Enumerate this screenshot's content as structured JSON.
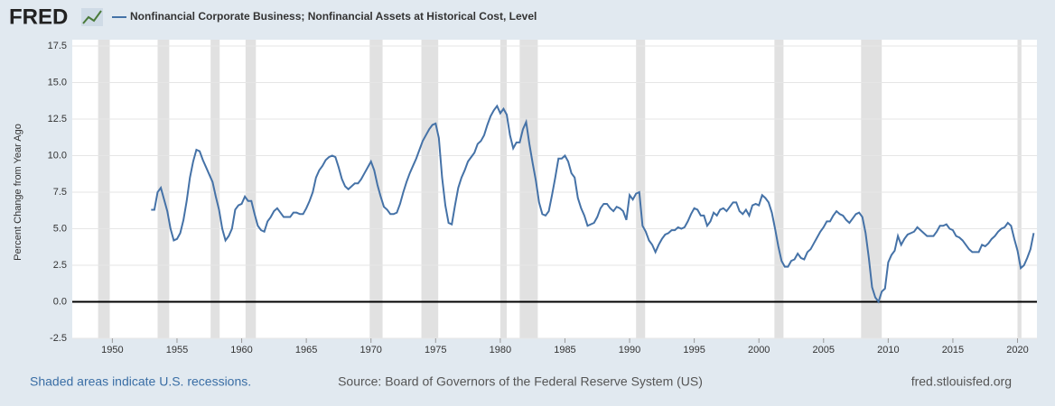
{
  "chart_data": {
    "type": "line",
    "logo": "FRED",
    "title": "Nonfinancial Corporate Business; Nonfinancial Assets at Historical Cost, Level",
    "y_label": "Percent Change from Year Ago",
    "footer_left": "Shaded areas indicate U.S. recessions.",
    "footer_center": "Source: Board of Governors of the Federal Reserve System (US)",
    "footer_right": "fred.stlouisfed.org",
    "xlim": [
      1946.9,
      2021.5
    ],
    "xticks": [
      1950,
      1955,
      1960,
      1965,
      1970,
      1975,
      1980,
      1985,
      1990,
      1995,
      2000,
      2005,
      2010,
      2015,
      2020
    ],
    "ylim": [
      -2.5,
      17.5
    ],
    "yticks": [
      -2.5,
      {
        "value": 0,
        "label": "0.0"
      },
      2.5,
      {
        "value": 5,
        "label": "5.0"
      },
      7.5,
      {
        "value": 10,
        "label": "10.0"
      },
      12.5,
      {
        "value": 15,
        "label": "15.0"
      },
      17.5
    ],
    "grid": true,
    "recessions": [
      [
        1948.9,
        1949.8
      ],
      [
        1953.5,
        1954.4
      ],
      [
        1957.6,
        1958.3
      ],
      [
        1960.3,
        1961.1
      ],
      [
        1969.9,
        1970.9
      ],
      [
        1973.9,
        1975.2
      ],
      [
        1980.0,
        1980.5
      ],
      [
        1981.5,
        1982.9
      ],
      [
        1990.5,
        1991.2
      ],
      [
        2001.2,
        2001.9
      ],
      [
        2007.9,
        2009.5
      ],
      [
        2020.0,
        2020.3
      ]
    ],
    "x": [
      1953,
      1953.25,
      1953.5,
      1953.75,
      1954,
      1954.25,
      1954.5,
      1954.75,
      1955,
      1955.25,
      1955.5,
      1955.75,
      1956,
      1956.25,
      1956.5,
      1956.75,
      1957,
      1957.25,
      1957.5,
      1957.75,
      1958,
      1958.25,
      1958.5,
      1958.75,
      1959,
      1959.25,
      1959.5,
      1959.75,
      1960,
      1960.25,
      1960.5,
      1960.75,
      1961,
      1961.25,
      1961.5,
      1961.75,
      1962,
      1962.25,
      1962.5,
      1962.75,
      1963,
      1963.25,
      1963.5,
      1963.75,
      1964,
      1964.25,
      1964.5,
      1964.75,
      1965,
      1965.25,
      1965.5,
      1965.75,
      1966,
      1966.25,
      1966.5,
      1966.75,
      1967,
      1967.25,
      1967.5,
      1967.75,
      1968,
      1968.25,
      1968.5,
      1968.75,
      1969,
      1969.25,
      1969.5,
      1969.75,
      1970,
      1970.25,
      1970.5,
      1970.75,
      1971,
      1971.25,
      1971.5,
      1971.75,
      1972,
      1972.25,
      1972.5,
      1972.75,
      1973,
      1973.25,
      1973.5,
      1973.75,
      1974,
      1974.25,
      1974.5,
      1974.75,
      1975,
      1975.25,
      1975.5,
      1975.75,
      1976,
      1976.25,
      1976.5,
      1976.75,
      1977,
      1977.25,
      1977.5,
      1977.75,
      1978,
      1978.25,
      1978.5,
      1978.75,
      1979,
      1979.25,
      1979.5,
      1979.75,
      1980,
      1980.25,
      1980.5,
      1980.75,
      1981,
      1981.25,
      1981.5,
      1981.75,
      1982,
      1982.25,
      1982.5,
      1982.75,
      1983,
      1983.25,
      1983.5,
      1983.75,
      1984,
      1984.25,
      1984.5,
      1984.75,
      1985,
      1985.25,
      1985.5,
      1985.75,
      1986,
      1986.25,
      1986.5,
      1986.75,
      1987,
      1987.25,
      1987.5,
      1987.75,
      1988,
      1988.25,
      1988.5,
      1988.75,
      1989,
      1989.25,
      1989.5,
      1989.75,
      1990,
      1990.25,
      1990.5,
      1990.75,
      1991,
      1991.25,
      1991.5,
      1991.75,
      1992,
      1992.25,
      1992.5,
      1992.75,
      1993,
      1993.25,
      1993.5,
      1993.75,
      1994,
      1994.25,
      1994.5,
      1994.75,
      1995,
      1995.25,
      1995.5,
      1995.75,
      1996,
      1996.25,
      1996.5,
      1996.75,
      1997,
      1997.25,
      1997.5,
      1997.75,
      1998,
      1998.25,
      1998.5,
      1998.75,
      1999,
      1999.25,
      1999.5,
      1999.75,
      2000,
      2000.25,
      2000.5,
      2000.75,
      2001,
      2001.25,
      2001.5,
      2001.75,
      2002,
      2002.25,
      2002.5,
      2002.75,
      2003,
      2003.25,
      2003.5,
      2003.75,
      2004,
      2004.25,
      2004.5,
      2004.75,
      2005,
      2005.25,
      2005.5,
      2005.75,
      2006,
      2006.25,
      2006.5,
      2006.75,
      2007,
      2007.25,
      2007.5,
      2007.75,
      2008,
      2008.25,
      2008.5,
      2008.75,
      2009,
      2009.25,
      2009.5,
      2009.75,
      2010,
      2010.25,
      2010.5,
      2010.75,
      2011,
      2011.25,
      2011.5,
      2011.75,
      2012,
      2012.25,
      2012.5,
      2012.75,
      2013,
      2013.25,
      2013.5,
      2013.75,
      2014,
      2014.25,
      2014.5,
      2014.75,
      2015,
      2015.25,
      2015.5,
      2015.75,
      2016,
      2016.25,
      2016.5,
      2016.75,
      2017,
      2017.25,
      2017.5,
      2017.75,
      2018,
      2018.25,
      2018.5,
      2018.75,
      2019,
      2019.25,
      2019.5,
      2019.75,
      2020,
      2020.25,
      2020.5,
      2020.75,
      2021,
      2021.25
    ],
    "series": [
      {
        "name": "Nonfinancial Corporate Business; Nonfinancial Assets at Historical Cost, Level",
        "color": "#4572a7",
        "values": [
          6.3,
          6.3,
          7.5,
          7.8,
          7.0,
          6.2,
          5.0,
          4.2,
          4.3,
          4.7,
          5.6,
          6.9,
          8.5,
          9.6,
          10.4,
          10.3,
          9.7,
          9.2,
          8.7,
          8.2,
          7.2,
          6.3,
          5.0,
          4.2,
          4.5,
          5.0,
          6.3,
          6.6,
          6.7,
          7.2,
          6.9,
          6.9,
          6.0,
          5.2,
          4.9,
          4.8,
          5.5,
          5.8,
          6.2,
          6.4,
          6.1,
          5.8,
          5.8,
          5.8,
          6.1,
          6.1,
          6.0,
          6.0,
          6.4,
          6.9,
          7.5,
          8.5,
          9.0,
          9.3,
          9.7,
          9.9,
          10.0,
          9.9,
          9.2,
          8.4,
          7.9,
          7.7,
          7.9,
          8.1,
          8.1,
          8.4,
          8.8,
          9.2,
          9.6,
          9.0,
          8.0,
          7.2,
          6.5,
          6.3,
          6.0,
          6.0,
          6.1,
          6.7,
          7.5,
          8.2,
          8.8,
          9.3,
          9.8,
          10.4,
          11.0,
          11.4,
          11.8,
          12.1,
          12.2,
          11.2,
          8.5,
          6.6,
          5.4,
          5.3,
          6.6,
          7.8,
          8.5,
          9.0,
          9.6,
          9.9,
          10.2,
          10.8,
          11.0,
          11.4,
          12.1,
          12.7,
          13.1,
          13.4,
          12.9,
          13.2,
          12.8,
          11.4,
          10.5,
          10.9,
          10.9,
          11.8,
          12.3,
          10.8,
          9.5,
          8.3,
          6.8,
          6.0,
          5.9,
          6.2,
          7.3,
          8.5,
          9.8,
          9.8,
          10.0,
          9.6,
          8.8,
          8.5,
          7.1,
          6.4,
          5.9,
          5.2,
          5.3,
          5.4,
          5.8,
          6.4,
          6.7,
          6.7,
          6.4,
          6.2,
          6.5,
          6.4,
          6.2,
          5.6,
          7.3,
          7.0,
          7.4,
          7.5,
          5.2,
          4.8,
          4.2,
          3.9,
          3.4,
          3.9,
          4.3,
          4.6,
          4.7,
          4.9,
          4.9,
          5.1,
          5.0,
          5.1,
          5.5,
          6.0,
          6.4,
          6.3,
          5.9,
          5.9,
          5.2,
          5.5,
          6.1,
          5.9,
          6.3,
          6.4,
          6.2,
          6.5,
          6.8,
          6.8,
          6.2,
          6.0,
          6.3,
          5.9,
          6.6,
          6.7,
          6.6,
          7.3,
          7.1,
          6.8,
          6.1,
          5.0,
          3.8,
          2.8,
          2.4,
          2.4,
          2.8,
          2.9,
          3.3,
          3.0,
          2.9,
          3.4,
          3.6,
          4.0,
          4.4,
          4.8,
          5.1,
          5.5,
          5.5,
          5.9,
          6.2,
          6.0,
          5.9,
          5.6,
          5.4,
          5.7,
          6.0,
          6.1,
          5.8,
          4.7,
          3.0,
          1.0,
          0.3,
          0.0,
          0.7,
          0.9,
          2.7,
          3.2,
          3.5,
          4.5,
          3.9,
          4.3,
          4.6,
          4.7,
          4.8,
          5.1,
          4.9,
          4.7,
          4.5,
          4.5,
          4.5,
          4.8,
          5.2,
          5.2,
          5.3,
          5.0,
          4.9,
          4.5,
          4.4,
          4.2,
          3.9,
          3.6,
          3.4,
          3.4,
          3.4,
          3.9,
          3.8,
          4.0,
          4.3,
          4.5,
          4.8,
          5.0,
          5.1,
          5.4,
          5.2,
          4.3,
          3.5,
          2.3,
          2.5,
          3.0,
          3.6,
          4.7
        ]
      }
    ]
  }
}
